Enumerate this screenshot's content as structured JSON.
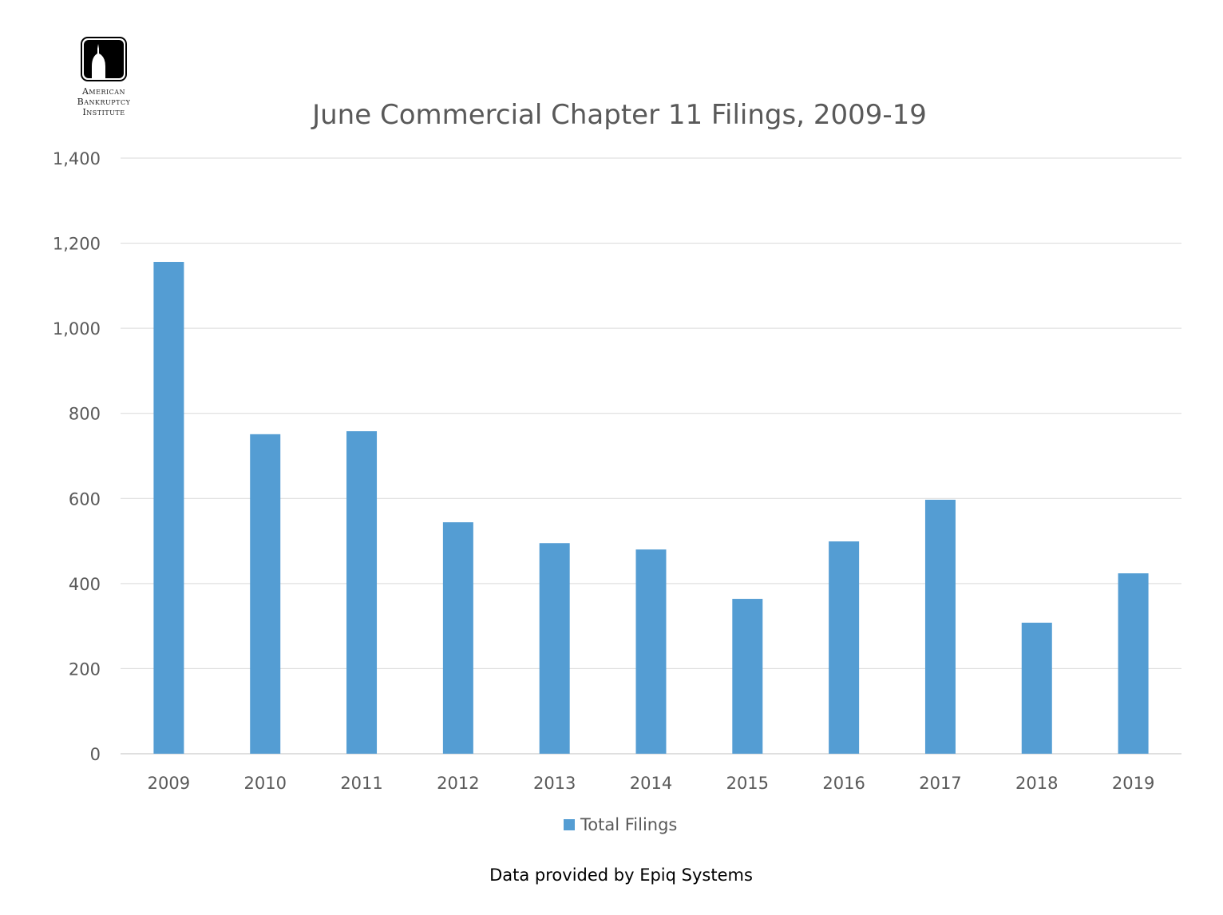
{
  "logo": {
    "lines": [
      "American",
      "Bankruptcy",
      "Institute"
    ]
  },
  "source": "Data provided by Epiq Systems",
  "chart_data": {
    "type": "bar",
    "title": "June Commercial Chapter 11 Filings, 2009-19",
    "xlabel": "",
    "ylabel": "",
    "categories": [
      "2009",
      "2010",
      "2011",
      "2012",
      "2013",
      "2014",
      "2015",
      "2016",
      "2017",
      "2018",
      "2019"
    ],
    "series": [
      {
        "name": "Total Filings",
        "color": "#549DD3",
        "values": [
          1156,
          751,
          758,
          544,
          495,
          480,
          364,
          499,
          597,
          308,
          424
        ]
      }
    ],
    "ylim": [
      0,
      1400
    ],
    "yticks": [
      0,
      200,
      400,
      600,
      800,
      1000,
      1200,
      1400
    ],
    "ytick_labels": [
      "0",
      "200",
      "400",
      "600",
      "800",
      "1,000",
      "1,200",
      "1,400"
    ],
    "grid": true,
    "legend_position": "bottom"
  }
}
